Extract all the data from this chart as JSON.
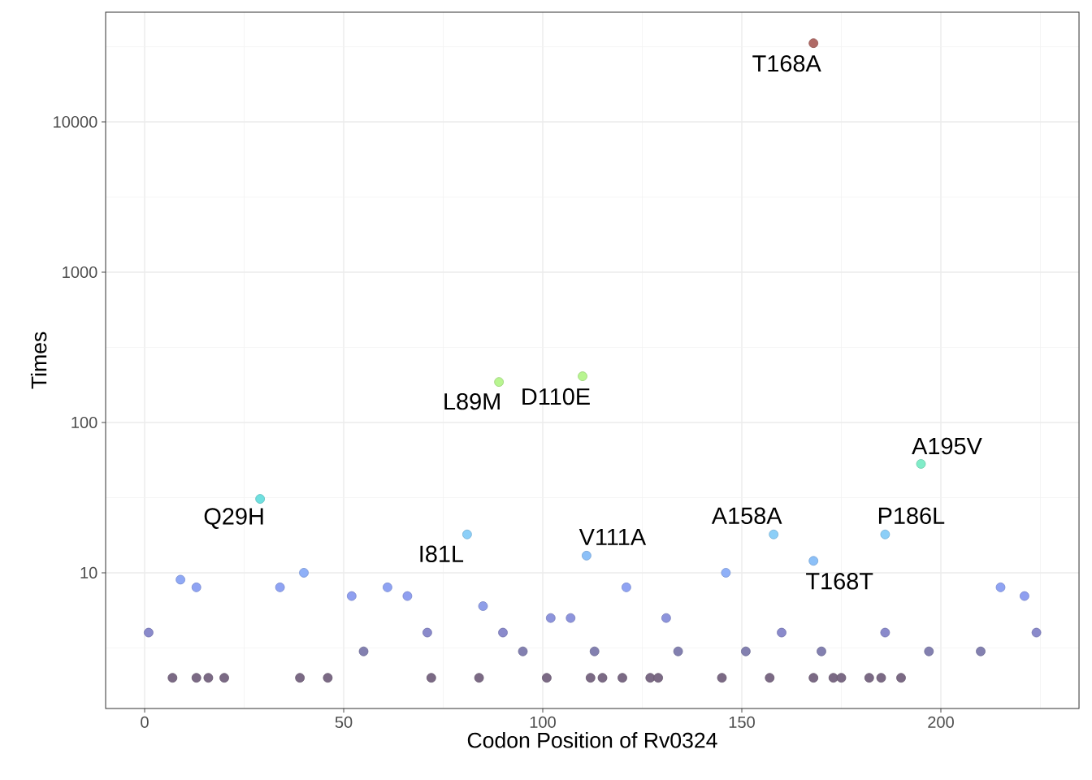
{
  "chart_data": {
    "type": "scatter",
    "xlabel": "Codon Position of Rv0324",
    "ylabel": "Times",
    "x": [
      1,
      7,
      9,
      13,
      13,
      16,
      20,
      29,
      34,
      39,
      40,
      46,
      52,
      55,
      61,
      66,
      71,
      72,
      81,
      84,
      85,
      89,
      90,
      95,
      101,
      102,
      107,
      110,
      111,
      112,
      113,
      115,
      120,
      121,
      127,
      129,
      131,
      134,
      145,
      146,
      151,
      157,
      158,
      160,
      168,
      168,
      168,
      170,
      173,
      175,
      182,
      185,
      186,
      186,
      190,
      195,
      197,
      210,
      215,
      221,
      224
    ],
    "values": [
      4,
      2,
      9,
      8,
      2,
      2,
      2,
      31,
      8,
      2,
      10,
      2,
      7,
      3,
      8,
      7,
      4,
      2,
      18,
      2,
      6,
      186,
      4,
      3,
      2,
      5,
      5,
      203,
      13,
      2,
      3,
      2,
      2,
      8,
      2,
      2,
      5,
      3,
      2,
      10,
      3,
      2,
      18,
      4,
      33400,
      12,
      2,
      3,
      2,
      2,
      2,
      2,
      18,
      4,
      2,
      53,
      3,
      3,
      8,
      7,
      4
    ],
    "colors": [
      "#8a8acb",
      "#7b6a85",
      "#8fa8f5",
      "#8fa3f3",
      "#7b6a85",
      "#7b6a85",
      "#7b6a85",
      "#6fe0e0",
      "#8fa3f3",
      "#7b6a85",
      "#8fb0f8",
      "#7b6a85",
      "#8f9ff0",
      "#8380b0",
      "#8fa3f3",
      "#8f9ff0",
      "#8a8acb",
      "#7b6a85",
      "#8ccff8",
      "#7b6a85",
      "#8f9ee8",
      "#b8f590",
      "#8a8acb",
      "#8380b0",
      "#7b6a85",
      "#8d94dc",
      "#8d94dc",
      "#b8f590",
      "#8cc0f8",
      "#7b6a85",
      "#8380b0",
      "#7b6a85",
      "#7b6a85",
      "#8fa3f3",
      "#7b6a85",
      "#7b6a85",
      "#8d94dc",
      "#8380b0",
      "#7b6a85",
      "#8fb0f8",
      "#8380b0",
      "#7b6a85",
      "#8ccff8",
      "#8a8acb",
      "#b06a66",
      "#8cc0f8",
      "#7b6a85",
      "#8380b0",
      "#7b6a85",
      "#7b6a85",
      "#7b6a85",
      "#7b6a85",
      "#8ccff8",
      "#8a8acb",
      "#7b6a85",
      "#80ecc8",
      "#8380b0",
      "#8380b0",
      "#8fa3f3",
      "#8f9ff0",
      "#8a8acb"
    ],
    "xlim": [
      -9.8,
      234.7
    ],
    "ylim": [
      1.25,
      53700
    ],
    "xticks": [
      0,
      50,
      100,
      150,
      200
    ],
    "yticks": [
      10,
      100,
      1000,
      10000
    ],
    "log": "y",
    "grid": true,
    "marker": "circle",
    "annotations": [
      {
        "text": "T168A",
        "x": 168,
        "y": 33400
      },
      {
        "text": "L89M",
        "x": 89,
        "y": 186
      },
      {
        "text": "D110E",
        "x": 110,
        "y": 203
      },
      {
        "text": "A195V",
        "x": 195,
        "y": 53
      },
      {
        "text": "Q29H",
        "x": 29,
        "y": 31
      },
      {
        "text": "I81L",
        "x": 81,
        "y": 18
      },
      {
        "text": "V111A",
        "x": 111,
        "y": 13
      },
      {
        "text": "A158A",
        "x": 158,
        "y": 18
      },
      {
        "text": "P186L",
        "x": 186,
        "y": 18
      },
      {
        "text": "T168T",
        "x": 168,
        "y": 12
      }
    ]
  }
}
